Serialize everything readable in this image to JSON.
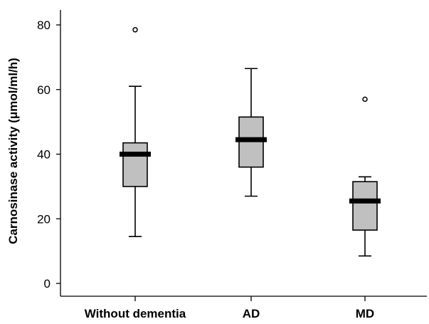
{
  "chart_data": {
    "type": "box",
    "ylabel": "Carnosinase activity (μmol/ml/h)",
    "xlabel": "",
    "ylim": [
      -2,
      84
    ],
    "yticks": [
      0,
      20,
      40,
      60,
      80
    ],
    "grid": false,
    "categories": [
      "Without dementia",
      "AD",
      "MD"
    ],
    "boxes": [
      {
        "category": "Without dementia",
        "whisker_low": 14.5,
        "q1": 30,
        "median": 40,
        "q3": 43.5,
        "whisker_high": 61,
        "outliers": [
          78.5
        ]
      },
      {
        "category": "AD",
        "whisker_low": 27,
        "q1": 36,
        "median": 44.5,
        "q3": 51.5,
        "whisker_high": 66.5,
        "outliers": []
      },
      {
        "category": "MD",
        "whisker_low": 8.5,
        "q1": 16.5,
        "median": 25.5,
        "q3": 31.5,
        "whisker_high": 33,
        "outliers": [
          57
        ]
      }
    ],
    "colors": {
      "box_fill": "#c0c0c0",
      "stroke": "#000000",
      "median": "#000000"
    }
  }
}
